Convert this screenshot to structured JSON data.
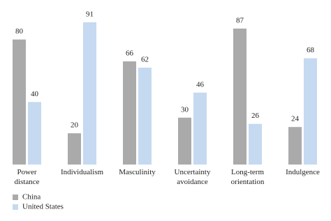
{
  "chart_data": {
    "type": "bar",
    "categories": [
      "Power distance",
      "Individualism",
      "Masculinity",
      "Uncertainty avoidance",
      "Long-term orientation",
      "Indulgence"
    ],
    "series": [
      {
        "name": "China",
        "color": "#aaaaaa",
        "values": [
          80,
          20,
          66,
          30,
          87,
          24
        ]
      },
      {
        "name": "United States",
        "color": "#c5d9f1",
        "values": [
          40,
          91,
          62,
          46,
          26,
          68
        ]
      }
    ],
    "legend": "bottom-left"
  }
}
